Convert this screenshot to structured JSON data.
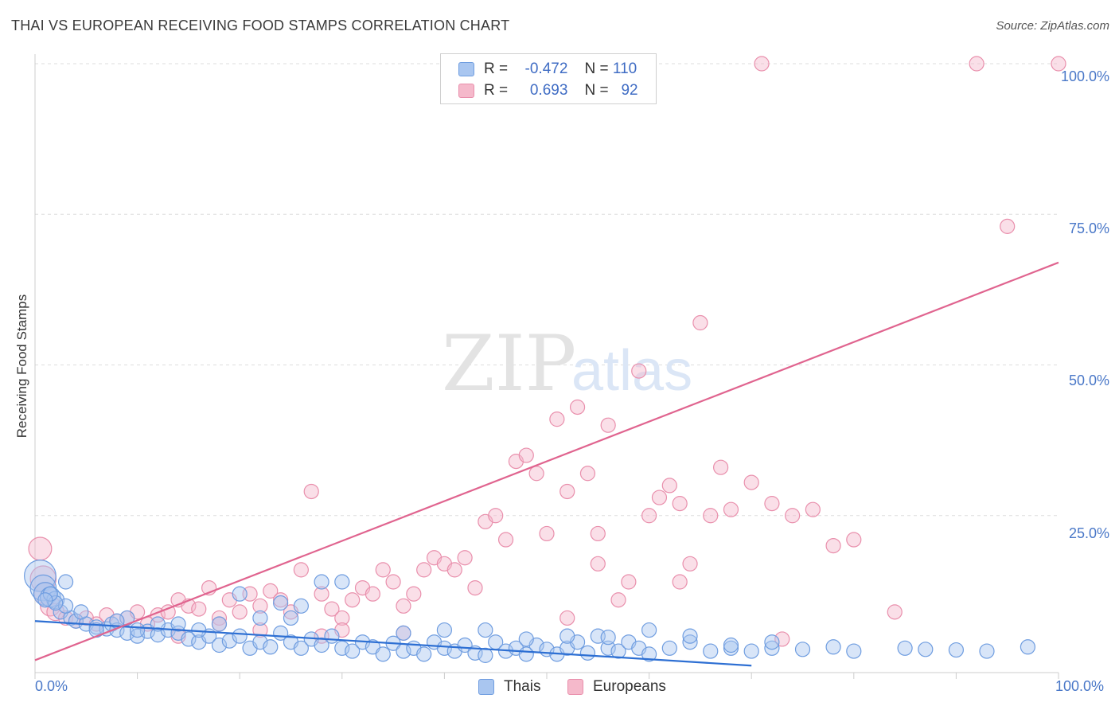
{
  "header": {
    "title": "THAI VS EUROPEAN RECEIVING FOOD STAMPS CORRELATION CHART",
    "source": "Source: ZipAtlas.com"
  },
  "legend": {
    "rows": [
      {
        "r_label": "R =",
        "r_value": "-0.472",
        "n_label": "N =",
        "n_value": "110"
      },
      {
        "r_label": "R =",
        "r_value": "0.693",
        "n_label": "N =",
        "n_value": "92"
      }
    ]
  },
  "bottom_legend": [
    "Thais",
    "Europeans"
  ],
  "watermark": {
    "zip": "ZIP",
    "atlas": "atlas"
  },
  "colors": {
    "thai_fill": "#a9c6f0",
    "thai_stroke": "#6f9de0",
    "thai_line": "#2d6fd3",
    "euro_fill": "#f5b9cb",
    "euro_stroke": "#e98fac",
    "euro_line": "#e0648f",
    "grid": "#dddddd",
    "tick_text": "#4a78c8"
  },
  "chart_data": {
    "type": "scatter",
    "title": "THAI VS EUROPEAN RECEIVING FOOD STAMPS CORRELATION CHART",
    "xlabel": "",
    "ylabel": "Receiving Food Stamps",
    "xlim": [
      0,
      100
    ],
    "ylim": [
      0,
      100
    ],
    "x_tick_labels": [
      "0.0%",
      "100.0%"
    ],
    "y_tick_labels": [
      "100.0%",
      "75.0%",
      "50.0%",
      "25.0%"
    ],
    "y_ticks": [
      100,
      75,
      50,
      25
    ],
    "grid": true,
    "series": [
      {
        "name": "Thais",
        "r": -0.472,
        "n": 110,
        "trend": {
          "x": [
            0,
            70
          ],
          "y": [
            7.5,
            0.1
          ]
        },
        "points": [
          [
            0.5,
            15,
            2.2
          ],
          [
            0.8,
            13,
            1.8
          ],
          [
            1,
            12,
            1.6
          ],
          [
            1.5,
            11.5,
            1.4
          ],
          [
            2,
            11,
            1.2
          ],
          [
            3,
            14,
            1
          ],
          [
            2.5,
            9,
            1
          ],
          [
            3.5,
            8,
            1
          ],
          [
            4,
            7.5,
            1
          ],
          [
            5,
            7,
            1
          ],
          [
            6,
            6.5,
            1
          ],
          [
            7,
            6.2,
            1
          ],
          [
            7.5,
            7,
            1
          ],
          [
            8,
            6,
            1
          ],
          [
            9,
            5.5,
            1
          ],
          [
            10,
            5,
            1
          ],
          [
            11,
            5.8,
            1
          ],
          [
            12,
            5.2,
            1
          ],
          [
            13,
            6,
            1
          ],
          [
            14,
            5.5,
            1
          ],
          [
            15,
            4.5,
            1
          ],
          [
            16,
            4,
            1
          ],
          [
            17,
            5,
            1
          ],
          [
            18,
            3.5,
            1
          ],
          [
            19,
            4.2,
            1
          ],
          [
            20,
            5,
            1
          ],
          [
            21,
            3,
            1
          ],
          [
            22,
            4,
            1
          ],
          [
            23,
            3.2,
            1
          ],
          [
            24,
            5.5,
            1
          ],
          [
            25,
            4,
            1
          ],
          [
            26,
            3,
            1
          ],
          [
            27,
            4.5,
            1
          ],
          [
            28,
            3.5,
            1
          ],
          [
            29,
            5,
            1
          ],
          [
            30,
            3,
            1
          ],
          [
            31,
            2.5,
            1
          ],
          [
            32,
            4,
            1
          ],
          [
            33,
            3.2,
            1
          ],
          [
            34,
            2,
            1
          ],
          [
            35,
            3.8,
            1
          ],
          [
            36,
            2.5,
            1
          ],
          [
            37,
            3,
            1
          ],
          [
            38,
            2,
            1
          ],
          [
            39,
            4,
            1
          ],
          [
            40,
            3,
            1
          ],
          [
            41,
            2.5,
            1
          ],
          [
            42,
            3.5,
            1
          ],
          [
            43,
            2.2,
            1
          ],
          [
            44,
            1.8,
            1
          ],
          [
            45,
            4,
            1
          ],
          [
            46,
            2.5,
            1
          ],
          [
            47,
            3,
            1
          ],
          [
            48,
            2,
            1
          ],
          [
            49,
            3.5,
            1
          ],
          [
            50,
            2.8,
            1
          ],
          [
            51,
            2,
            1
          ],
          [
            52,
            3,
            1
          ],
          [
            53,
            4,
            1
          ],
          [
            54,
            2.2,
            1
          ],
          [
            55,
            5,
            1
          ],
          [
            56,
            3,
            1
          ],
          [
            57,
            2.5,
            1
          ],
          [
            58,
            4,
            1
          ],
          [
            59,
            3,
            1
          ],
          [
            60,
            2,
            1
          ],
          [
            62,
            3,
            1
          ],
          [
            64,
            4,
            1
          ],
          [
            66,
            2.5,
            1
          ],
          [
            68,
            3,
            1
          ],
          [
            70,
            2.5,
            1
          ],
          [
            72,
            3,
            1
          ],
          [
            75,
            2.8,
            1
          ],
          [
            78,
            3.2,
            1
          ],
          [
            80,
            2.5,
            1
          ],
          [
            85,
            3,
            1
          ],
          [
            87,
            2.8,
            1
          ],
          [
            90,
            2.7,
            1
          ],
          [
            93,
            2.5,
            1
          ],
          [
            97,
            3.2,
            1
          ],
          [
            20,
            12,
            1
          ],
          [
            24,
            10.5,
            1
          ],
          [
            26,
            10,
            1
          ],
          [
            28,
            14,
            1
          ],
          [
            30,
            14,
            1
          ],
          [
            25,
            8,
            1
          ],
          [
            22,
            8,
            1
          ],
          [
            18,
            7,
            1
          ],
          [
            16,
            6,
            1
          ],
          [
            14,
            7,
            1
          ],
          [
            12,
            7,
            1
          ],
          [
            10,
            6,
            1
          ],
          [
            9,
            8,
            1
          ],
          [
            8,
            7.5,
            1
          ],
          [
            6,
            6,
            1
          ],
          [
            4.5,
            9,
            1
          ],
          [
            3,
            10,
            1
          ],
          [
            2,
            10.5,
            1
          ],
          [
            1.5,
            12,
            1
          ],
          [
            1,
            11,
            1
          ],
          [
            36,
            5.5,
            1
          ],
          [
            40,
            6,
            1
          ],
          [
            44,
            6,
            1
          ],
          [
            48,
            4.5,
            1
          ],
          [
            52,
            5,
            1
          ],
          [
            56,
            4.8,
            1
          ],
          [
            60,
            6,
            1
          ],
          [
            64,
            5,
            1
          ],
          [
            68,
            3.5,
            1
          ],
          [
            72,
            4,
            1
          ]
        ]
      },
      {
        "name": "Europeans",
        "r": 0.693,
        "n": 92,
        "trend": {
          "x": [
            0,
            100
          ],
          "y": [
            1,
            67
          ]
        },
        "points": [
          [
            0.5,
            19.5,
            1.6
          ],
          [
            0.8,
            14.5,
            1.8
          ],
          [
            1,
            12,
            1.6
          ],
          [
            1.5,
            10,
            1.4
          ],
          [
            2,
            9,
            1.2
          ],
          [
            3,
            8,
            1
          ],
          [
            4,
            7.5,
            1
          ],
          [
            5,
            8,
            1
          ],
          [
            6,
            7,
            1
          ],
          [
            7,
            8.5,
            1
          ],
          [
            8,
            7.5,
            1
          ],
          [
            9,
            8,
            1
          ],
          [
            10,
            9,
            1
          ],
          [
            11,
            7,
            1
          ],
          [
            12,
            8.5,
            1
          ],
          [
            13,
            9,
            1
          ],
          [
            14,
            11,
            1
          ],
          [
            15,
            10,
            1
          ],
          [
            16,
            9.5,
            1
          ],
          [
            17,
            13,
            1
          ],
          [
            18,
            8,
            1
          ],
          [
            19,
            11,
            1
          ],
          [
            20,
            9,
            1
          ],
          [
            21,
            12,
            1
          ],
          [
            22,
            10,
            1
          ],
          [
            23,
            12.5,
            1
          ],
          [
            24,
            11,
            1
          ],
          [
            25,
            9,
            1
          ],
          [
            26,
            16,
            1
          ],
          [
            27,
            29,
            1
          ],
          [
            28,
            12,
            1
          ],
          [
            29,
            9.5,
            1
          ],
          [
            30,
            8,
            1
          ],
          [
            31,
            11,
            1
          ],
          [
            32,
            13,
            1
          ],
          [
            33,
            12,
            1
          ],
          [
            34,
            16,
            1
          ],
          [
            35,
            14,
            1
          ],
          [
            36,
            10,
            1
          ],
          [
            37,
            12,
            1
          ],
          [
            38,
            16,
            1
          ],
          [
            39,
            18,
            1
          ],
          [
            40,
            17,
            1
          ],
          [
            41,
            16,
            1
          ],
          [
            42,
            18,
            1
          ],
          [
            43,
            13,
            1
          ],
          [
            44,
            24,
            1
          ],
          [
            45,
            25,
            1
          ],
          [
            46,
            21,
            1
          ],
          [
            47,
            34,
            1
          ],
          [
            48,
            35,
            1
          ],
          [
            49,
            32,
            1
          ],
          [
            50,
            22,
            1
          ],
          [
            51,
            41,
            1
          ],
          [
            52,
            29,
            1
          ],
          [
            53,
            43,
            1
          ],
          [
            54,
            32,
            1
          ],
          [
            55,
            22,
            1
          ],
          [
            56,
            40,
            1
          ],
          [
            57,
            11,
            1
          ],
          [
            58,
            14,
            1
          ],
          [
            59,
            49,
            1
          ],
          [
            60,
            25,
            1
          ],
          [
            61,
            28,
            1
          ],
          [
            62,
            30,
            1
          ],
          [
            63,
            27,
            1
          ],
          [
            64,
            17,
            1
          ],
          [
            65,
            57,
            1
          ],
          [
            66,
            25,
            1
          ],
          [
            67,
            33,
            1
          ],
          [
            68,
            26,
            1
          ],
          [
            70,
            30.5,
            1
          ],
          [
            72,
            27,
            1
          ],
          [
            74,
            25,
            1
          ],
          [
            76,
            26,
            1
          ],
          [
            78,
            20,
            1
          ],
          [
            80,
            21,
            1
          ],
          [
            84,
            9,
            1
          ],
          [
            95,
            73,
            1
          ],
          [
            71,
            100,
            1
          ],
          [
            92,
            100,
            1
          ],
          [
            100,
            100,
            1
          ],
          [
            55,
            17,
            1
          ],
          [
            63,
            14,
            1
          ],
          [
            52,
            8,
            1
          ],
          [
            36,
            5.5,
            1
          ],
          [
            30,
            6,
            1
          ],
          [
            28,
            5,
            1
          ],
          [
            22,
            6,
            1
          ],
          [
            18,
            7,
            1
          ],
          [
            14,
            5,
            1
          ],
          [
            73,
            4.5,
            1
          ]
        ]
      }
    ]
  }
}
